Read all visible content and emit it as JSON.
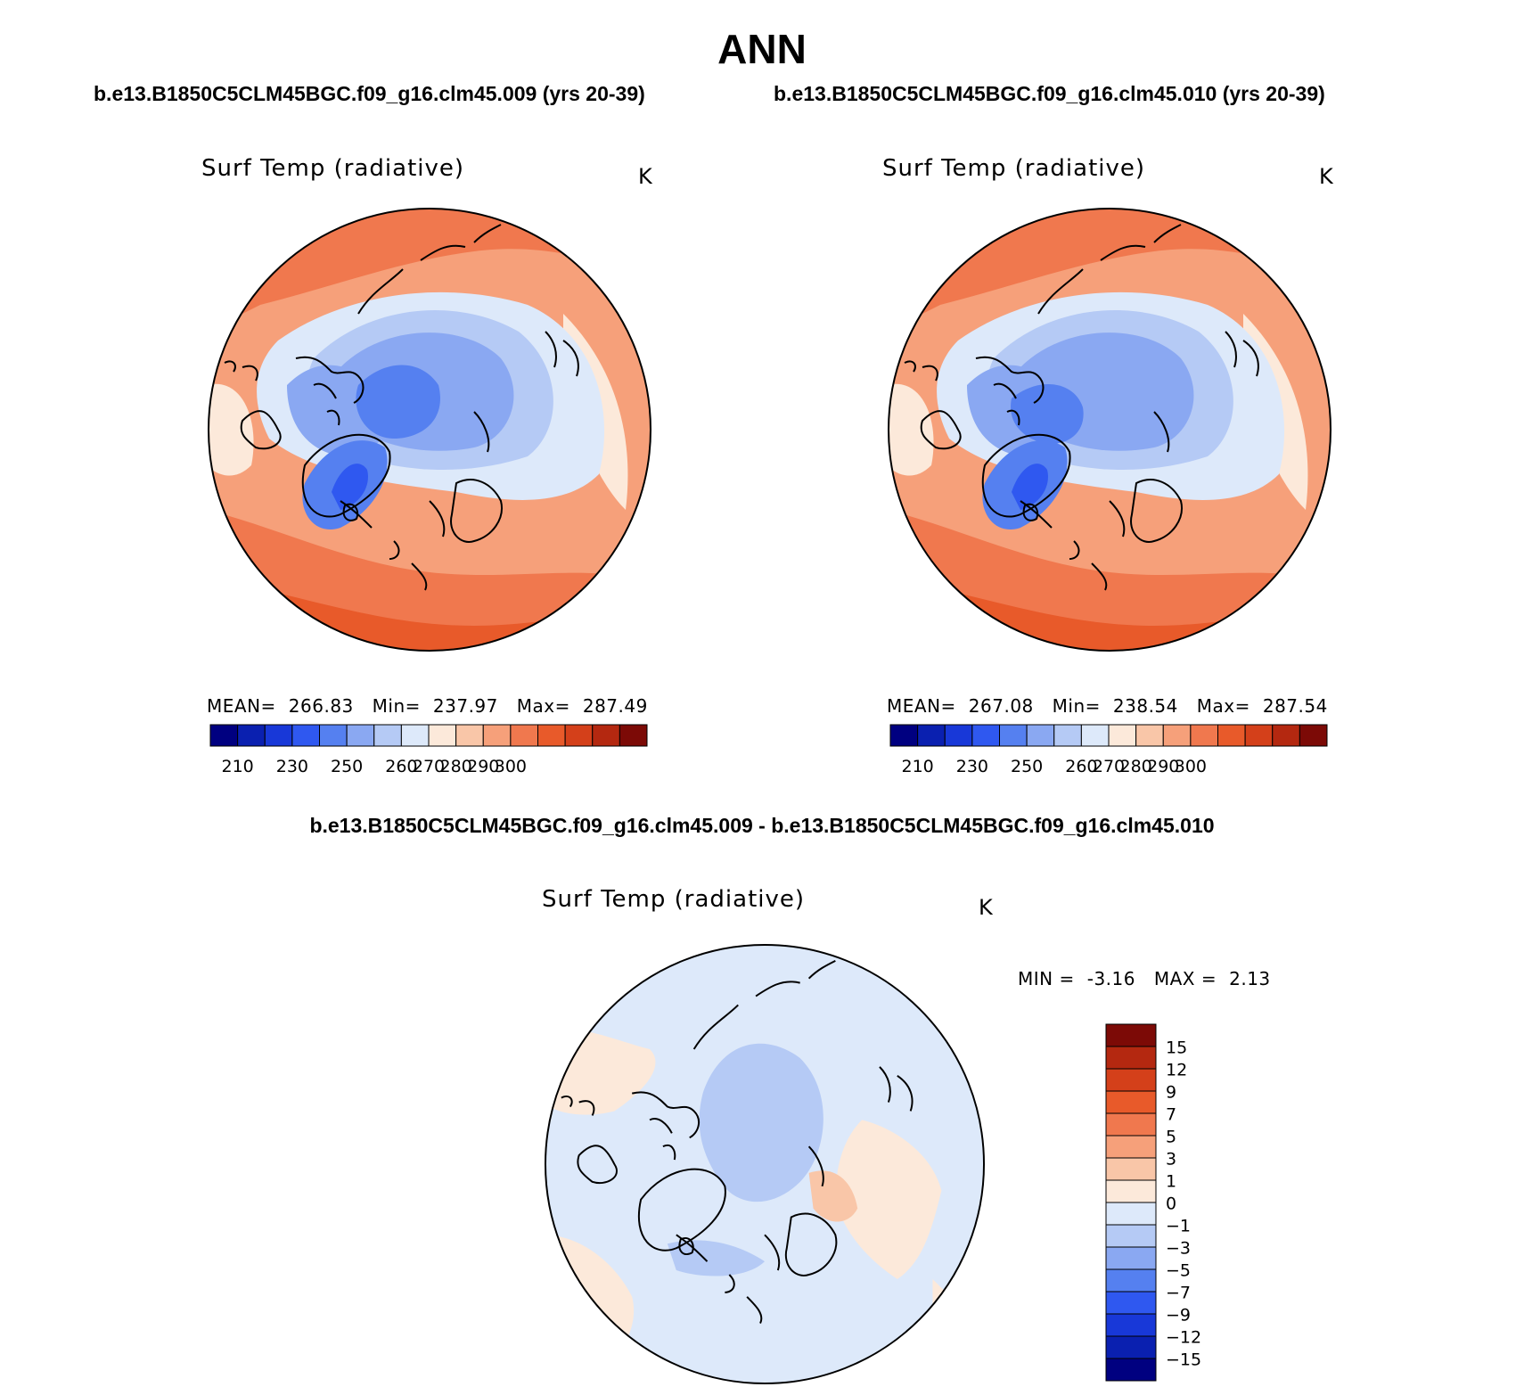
{
  "title": "ANN",
  "panels": [
    {
      "case_title": "b.e13.B1850C5CLM45BGC.f09_g16.clm45.009 (yrs 20-39)",
      "variable": "Surf Temp (radiative)",
      "units": "K",
      "stats": {
        "mean_label": "MEAN=",
        "mean": "266.83",
        "min_label": "Min=",
        "min": "237.97",
        "max_label": "Max=",
        "max": "287.49"
      }
    },
    {
      "case_title": "b.e13.B1850C5CLM45BGC.f09_g16.clm45.010 (yrs 20-39)",
      "variable": "Surf Temp (radiative)",
      "units": "K",
      "stats": {
        "mean_label": "MEAN=",
        "mean": "267.08",
        "min_label": "Min=",
        "min": "238.54",
        "max_label": "Max=",
        "max": "287.54"
      }
    }
  ],
  "diff_panel": {
    "title": "b.e13.B1850C5CLM45BGC.f09_g16.clm45.009 - b.e13.B1850C5CLM45BGC.f09_g16.clm45.010",
    "variable": "Surf Temp (radiative)",
    "units": "K",
    "stats_min_label": "MIN =",
    "stats_min": "-3.16",
    "stats_max_label": "MAX =",
    "stats_max": "2.13"
  },
  "abs_colorbar": {
    "colors": [
      "#000080",
      "#0a20b0",
      "#1838d8",
      "#2f58f0",
      "#5580f0",
      "#8aa8f2",
      "#b5caf5",
      "#dde9fa",
      "#fce9da",
      "#f9c6a8",
      "#f6a07a",
      "#f0784e",
      "#e85a2a",
      "#d4401a",
      "#b42810",
      "#7c0a06"
    ],
    "tick_labels": [
      "210",
      "230",
      "250",
      "260",
      "270",
      "280",
      "290",
      "300"
    ]
  },
  "diff_colorbar": {
    "colors": [
      "#7c0a06",
      "#b42810",
      "#d4401a",
      "#e85a2a",
      "#f0784e",
      "#f6a07a",
      "#f9c6a8",
      "#fce9da",
      "#dde9fa",
      "#b5caf5",
      "#8aa8f2",
      "#5580f0",
      "#2f58f0",
      "#1838d8",
      "#0a20b0",
      "#000080"
    ],
    "tick_labels": [
      "15",
      "12",
      "9",
      "7",
      "5",
      "3",
      "1",
      "0",
      "−1",
      "−3",
      "−5",
      "−7",
      "−9",
      "−12",
      "−15"
    ]
  }
}
